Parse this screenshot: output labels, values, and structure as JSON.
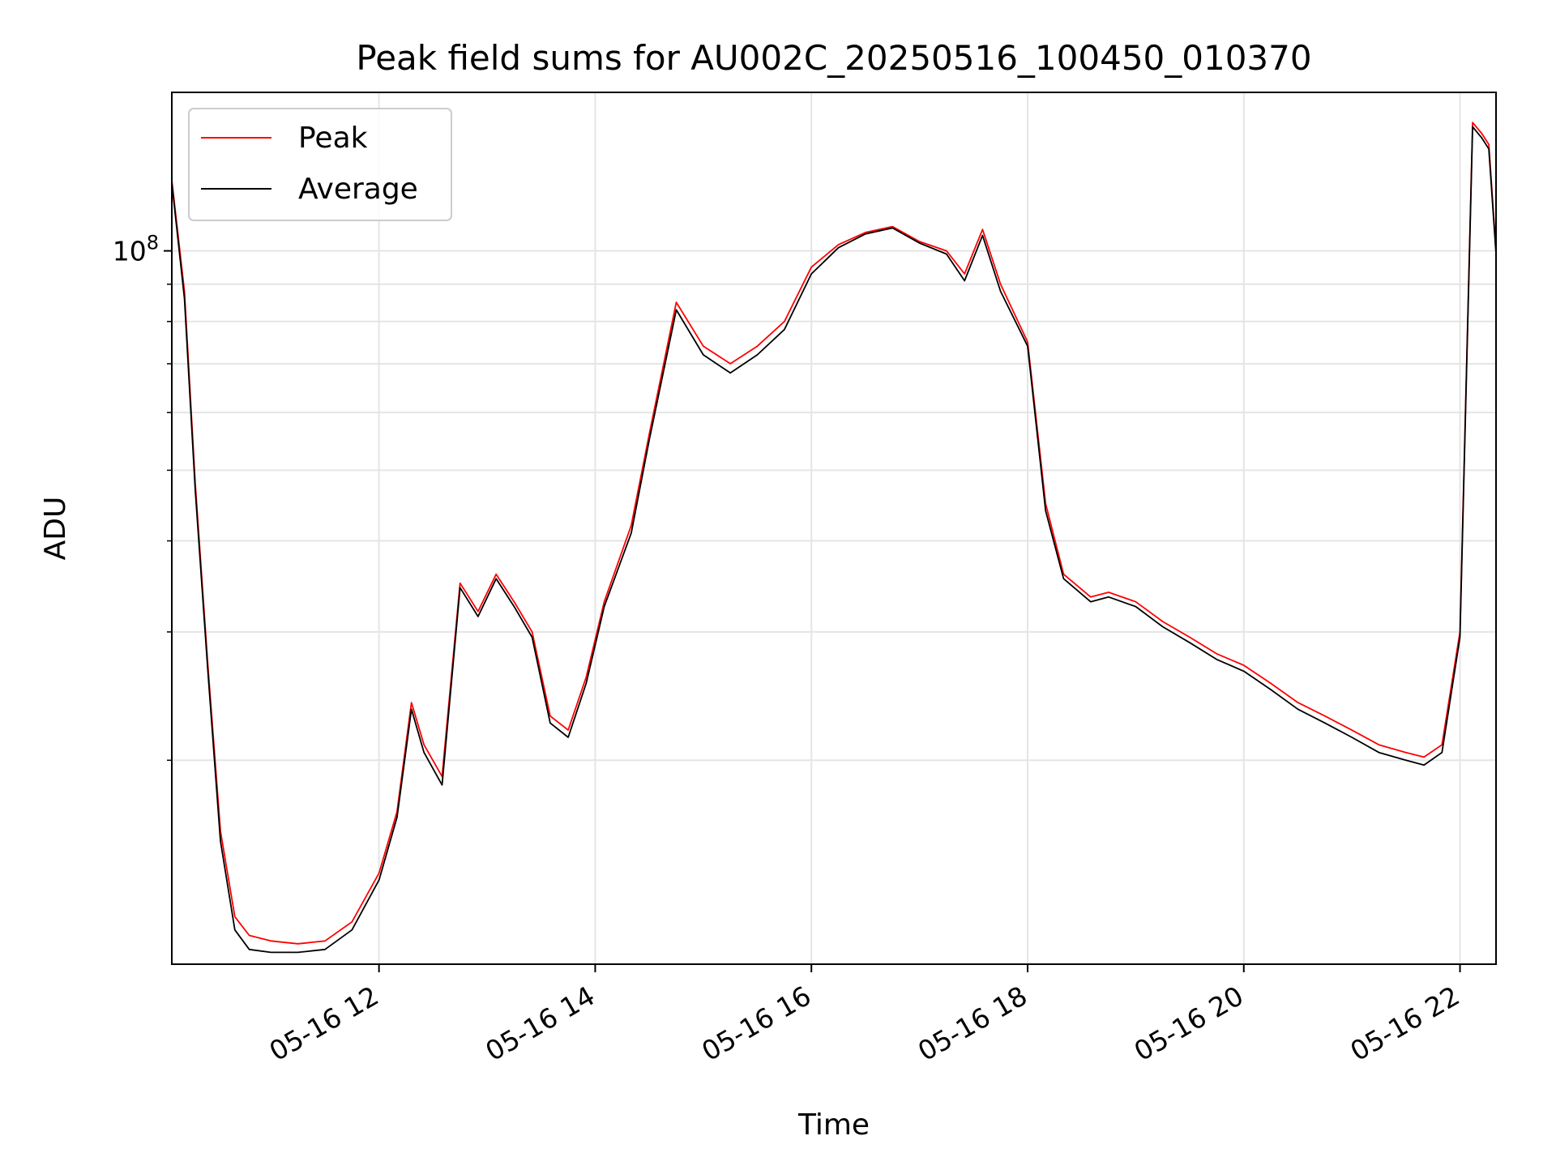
{
  "chart_data": {
    "type": "line",
    "title": "Peak field sums for AU002C_20250516_100450_010370",
    "xlabel": "Time",
    "ylabel": "ADU",
    "x_range": [
      "2025-05-16T10:05",
      "2025-05-16T22:20"
    ],
    "ylim": [
      10500000,
      165000000
    ],
    "yscale": "log",
    "grid": true,
    "legend_position": "top-left",
    "x_ticks": [
      {
        "value": "2025-05-16T12:00",
        "label": "05-16 12"
      },
      {
        "value": "2025-05-16T14:00",
        "label": "05-16 14"
      },
      {
        "value": "2025-05-16T16:00",
        "label": "05-16 16"
      },
      {
        "value": "2025-05-16T18:00",
        "label": "05-16 18"
      },
      {
        "value": "2025-05-16T20:00",
        "label": "05-16 20"
      },
      {
        "value": "2025-05-16T22:00",
        "label": "05-16 22"
      }
    ],
    "y_major_ticks": [
      {
        "value": 100000000,
        "label_base": "10",
        "label_exp": "8"
      }
    ],
    "y_minor_ticks": [
      20000000,
      30000000,
      40000000,
      50000000,
      60000000,
      70000000,
      80000000,
      90000000
    ],
    "series": [
      {
        "name": "Peak",
        "color": "#ff0000",
        "x": [
          "2025-05-16T10:05",
          "2025-05-16T10:12",
          "2025-05-16T10:18",
          "2025-05-16T10:25",
          "2025-05-16T10:32",
          "2025-05-16T10:40",
          "2025-05-16T10:48",
          "2025-05-16T11:00",
          "2025-05-16T11:15",
          "2025-05-16T11:30",
          "2025-05-16T11:45",
          "2025-05-16T12:00",
          "2025-05-16T12:10",
          "2025-05-16T12:18",
          "2025-05-16T12:25",
          "2025-05-16T12:35",
          "2025-05-16T12:45",
          "2025-05-16T12:55",
          "2025-05-16T13:05",
          "2025-05-16T13:15",
          "2025-05-16T13:25",
          "2025-05-16T13:35",
          "2025-05-16T13:45",
          "2025-05-16T13:55",
          "2025-05-16T14:05",
          "2025-05-16T14:20",
          "2025-05-16T14:30",
          "2025-05-16T14:45",
          "2025-05-16T15:00",
          "2025-05-16T15:15",
          "2025-05-16T15:30",
          "2025-05-16T15:45",
          "2025-05-16T16:00",
          "2025-05-16T16:15",
          "2025-05-16T16:30",
          "2025-05-16T16:45",
          "2025-05-16T17:00",
          "2025-05-16T17:15",
          "2025-05-16T17:25",
          "2025-05-16T17:35",
          "2025-05-16T17:45",
          "2025-05-16T18:00",
          "2025-05-16T18:10",
          "2025-05-16T18:20",
          "2025-05-16T18:35",
          "2025-05-16T18:45",
          "2025-05-16T19:00",
          "2025-05-16T19:15",
          "2025-05-16T19:30",
          "2025-05-16T19:45",
          "2025-05-16T20:00",
          "2025-05-16T20:15",
          "2025-05-16T20:30",
          "2025-05-16T20:45",
          "2025-05-16T21:00",
          "2025-05-16T21:15",
          "2025-05-16T21:30",
          "2025-05-16T21:40",
          "2025-05-16T21:50",
          "2025-05-16T22:00",
          "2025-05-16T22:07",
          "2025-05-16T22:12",
          "2025-05-16T22:16",
          "2025-05-16T22:20"
        ],
        "values": [
          125000000,
          88000000,
          48000000,
          27000000,
          16000000,
          12200000,
          11500000,
          11300000,
          11200000,
          11300000,
          12000000,
          14000000,
          17000000,
          24000000,
          21000000,
          19000000,
          35000000,
          32000000,
          36000000,
          33000000,
          30000000,
          23000000,
          22000000,
          26000000,
          33000000,
          42000000,
          56000000,
          85000000,
          74000000,
          70000000,
          74000000,
          80000000,
          95000000,
          102000000,
          106000000,
          108000000,
          103000000,
          100000000,
          93000000,
          107000000,
          90000000,
          75000000,
          45000000,
          36000000,
          33500000,
          34000000,
          33000000,
          31000000,
          29500000,
          28000000,
          27000000,
          25500000,
          24000000,
          23000000,
          22000000,
          21000000,
          20500000,
          20200000,
          21000000,
          30000000,
          150000000,
          145000000,
          140000000,
          100000000
        ]
      },
      {
        "name": "Average",
        "color": "#000000",
        "x": [
          "2025-05-16T10:05",
          "2025-05-16T10:12",
          "2025-05-16T10:18",
          "2025-05-16T10:25",
          "2025-05-16T10:32",
          "2025-05-16T10:40",
          "2025-05-16T10:48",
          "2025-05-16T11:00",
          "2025-05-16T11:15",
          "2025-05-16T11:30",
          "2025-05-16T11:45",
          "2025-05-16T12:00",
          "2025-05-16T12:10",
          "2025-05-16T12:18",
          "2025-05-16T12:25",
          "2025-05-16T12:35",
          "2025-05-16T12:45",
          "2025-05-16T12:55",
          "2025-05-16T13:05",
          "2025-05-16T13:15",
          "2025-05-16T13:25",
          "2025-05-16T13:35",
          "2025-05-16T13:45",
          "2025-05-16T13:55",
          "2025-05-16T14:05",
          "2025-05-16T14:20",
          "2025-05-16T14:30",
          "2025-05-16T14:45",
          "2025-05-16T15:00",
          "2025-05-16T15:15",
          "2025-05-16T15:30",
          "2025-05-16T15:45",
          "2025-05-16T16:00",
          "2025-05-16T16:15",
          "2025-05-16T16:30",
          "2025-05-16T16:45",
          "2025-05-16T17:00",
          "2025-05-16T17:15",
          "2025-05-16T17:25",
          "2025-05-16T17:35",
          "2025-05-16T17:45",
          "2025-05-16T18:00",
          "2025-05-16T18:10",
          "2025-05-16T18:20",
          "2025-05-16T18:35",
          "2025-05-16T18:45",
          "2025-05-16T19:00",
          "2025-05-16T19:15",
          "2025-05-16T19:30",
          "2025-05-16T19:45",
          "2025-05-16T20:00",
          "2025-05-16T20:15",
          "2025-05-16T20:30",
          "2025-05-16T20:45",
          "2025-05-16T21:00",
          "2025-05-16T21:15",
          "2025-05-16T21:30",
          "2025-05-16T21:40",
          "2025-05-16T21:50",
          "2025-05-16T22:00",
          "2025-05-16T22:07",
          "2025-05-16T22:12",
          "2025-05-16T22:16",
          "2025-05-16T22:20"
        ],
        "values": [
          124000000,
          86000000,
          47000000,
          26500000,
          15500000,
          11700000,
          11000000,
          10900000,
          10900000,
          11000000,
          11700000,
          13700000,
          16700000,
          23500000,
          20500000,
          18500000,
          34500000,
          31500000,
          35500000,
          32500000,
          29500000,
          22500000,
          21500000,
          25500000,
          32500000,
          41000000,
          55000000,
          83000000,
          72000000,
          68000000,
          72000000,
          78000000,
          93000000,
          101000000,
          105500000,
          107500000,
          102500000,
          99000000,
          91000000,
          105000000,
          88000000,
          74000000,
          44000000,
          35500000,
          33000000,
          33500000,
          32500000,
          30500000,
          29000000,
          27500000,
          26500000,
          25000000,
          23500000,
          22500000,
          21500000,
          20500000,
          20000000,
          19700000,
          20500000,
          29500000,
          148000000,
          143000000,
          138000000,
          99000000
        ]
      }
    ]
  }
}
